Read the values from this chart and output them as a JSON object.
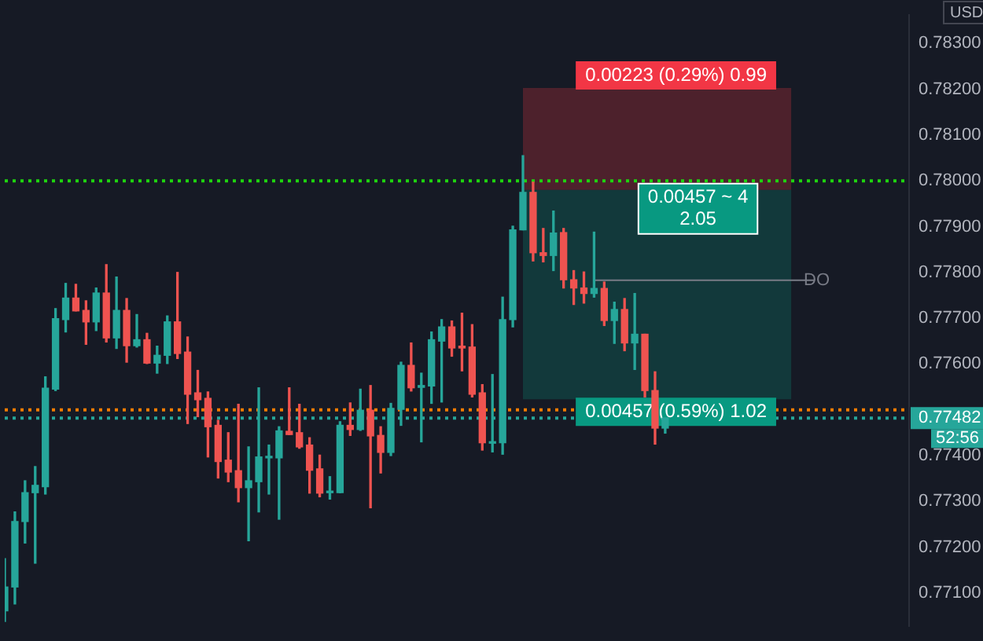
{
  "chart_data": {
    "type": "candlestick",
    "ylabel": "USD",
    "categories": [
      null,
      null,
      null,
      null,
      null,
      null,
      null,
      null,
      null,
      null,
      null,
      null,
      null,
      null,
      null,
      null,
      null,
      null,
      null,
      null,
      null,
      null,
      null,
      null,
      null,
      null,
      null,
      null,
      null,
      null,
      null,
      null,
      null,
      null,
      null,
      null,
      null,
      null,
      null,
      null,
      null,
      null,
      null,
      null,
      null,
      null,
      null,
      null,
      null,
      null,
      null,
      null,
      null,
      null,
      null,
      null,
      null,
      null,
      null,
      null,
      null,
      null,
      null,
      null,
      null,
      null,
      null,
      null,
      null,
      null,
      null,
      null,
      null,
      null,
      null,
      null,
      null,
      null,
      null,
      null,
      null,
      null,
      null,
      null,
      null,
      null,
      null,
      null,
      null,
      null
    ],
    "ohlc": [
      [
        0.77061,
        0.77175,
        0.77038,
        0.77113
      ],
      [
        0.77113,
        0.77277,
        0.77076,
        0.77256
      ],
      [
        0.77256,
        0.77345,
        0.77209,
        0.77319
      ],
      [
        0.77319,
        0.77376,
        0.77165,
        0.77335
      ],
      [
        0.77332,
        0.77572,
        0.77316,
        0.77547
      ],
      [
        0.77545,
        0.77721,
        0.77542,
        0.77699
      ],
      [
        0.77697,
        0.77776,
        0.7767,
        0.77744
      ],
      [
        0.77744,
        0.77774,
        0.77716,
        0.77716
      ],
      [
        0.77717,
        0.77738,
        0.77643,
        0.77692
      ],
      [
        0.77692,
        0.77766,
        0.77673,
        0.77755
      ],
      [
        0.77755,
        0.77817,
        0.77648,
        0.77657
      ],
      [
        0.77657,
        0.7779,
        0.77634,
        0.77717
      ],
      [
        0.77717,
        0.77743,
        0.77604,
        0.7764
      ],
      [
        0.7764,
        0.77708,
        0.77637,
        0.77653
      ],
      [
        0.77653,
        0.77667,
        0.77601,
        0.77602
      ],
      [
        0.77602,
        0.77639,
        0.7758,
        0.77619
      ],
      [
        0.77619,
        0.77705,
        0.77601,
        0.77692
      ],
      [
        0.77692,
        0.778,
        0.77612,
        0.77623
      ],
      [
        0.77626,
        0.77659,
        0.7747,
        0.77534
      ],
      [
        0.77537,
        0.77586,
        0.77485,
        0.77522
      ],
      [
        0.77525,
        0.77539,
        0.77397,
        0.77463
      ],
      [
        0.77466,
        0.77477,
        0.77351,
        0.77387
      ],
      [
        0.7739,
        0.7745,
        0.77343,
        0.77364
      ],
      [
        0.77367,
        0.77512,
        0.77299,
        0.7733
      ],
      [
        0.7733,
        0.77419,
        0.77214,
        0.77345
      ],
      [
        0.77343,
        0.77548,
        0.77277,
        0.77397
      ],
      [
        0.77395,
        0.77423,
        0.77316,
        0.77397
      ],
      [
        0.77395,
        0.77463,
        0.77261,
        0.77454
      ],
      [
        0.77453,
        0.77548,
        0.77446,
        0.77446
      ],
      [
        0.7745,
        0.77512,
        0.77416,
        0.77419
      ],
      [
        0.77423,
        0.77439,
        0.77318,
        0.77368
      ],
      [
        0.77371,
        0.77401,
        0.7731,
        0.77318
      ],
      [
        0.77319,
        0.77354,
        0.77305,
        0.77322
      ],
      [
        0.77319,
        0.77474,
        0.77319,
        0.77466
      ],
      [
        0.77466,
        0.77515,
        0.77444,
        0.77457
      ],
      [
        0.77457,
        0.77545,
        0.77455,
        0.77499
      ],
      [
        0.77499,
        0.77553,
        0.77286,
        0.77443
      ],
      [
        0.77444,
        0.77463,
        0.77362,
        0.77407
      ],
      [
        0.77407,
        0.77514,
        0.774,
        0.77503
      ],
      [
        0.77501,
        0.77604,
        0.77466,
        0.77597
      ],
      [
        0.77597,
        0.77646,
        0.77541,
        0.77548
      ],
      [
        0.77549,
        0.7758,
        0.7743,
        0.77553
      ],
      [
        0.77552,
        0.7767,
        0.77514,
        0.77653
      ],
      [
        0.7765,
        0.77697,
        0.77517,
        0.77681
      ],
      [
        0.77681,
        0.77694,
        0.77617,
        0.77635
      ],
      [
        0.77639,
        0.77711,
        0.77585,
        0.77635
      ],
      [
        0.77637,
        0.77686,
        0.77528,
        0.77534
      ],
      [
        0.77537,
        0.77555,
        0.77412,
        0.77428
      ],
      [
        0.77427,
        0.77577,
        0.77408,
        0.7743
      ],
      [
        0.77428,
        0.77746,
        0.77403,
        0.77697
      ],
      [
        0.77697,
        0.77901,
        0.77681,
        0.77893
      ],
      [
        0.77893,
        0.78055,
        0.77893,
        0.77975
      ],
      [
        0.77975,
        0.77997,
        0.77825,
        0.77843
      ],
      [
        0.77843,
        0.77896,
        0.77823,
        0.77837
      ],
      [
        0.77837,
        0.77934,
        0.77804,
        0.77886
      ],
      [
        0.77887,
        0.77896,
        0.77766,
        0.77784
      ],
      [
        0.77784,
        0.77804,
        0.7773,
        0.77766
      ],
      [
        0.77766,
        0.77801,
        0.77733,
        0.77754
      ],
      [
        0.77754,
        0.77888,
        0.77746,
        0.77765
      ],
      [
        0.77765,
        0.77779,
        0.77684,
        0.77695
      ],
      [
        0.77695,
        0.77735,
        0.77645,
        0.77719
      ],
      [
        0.77719,
        0.77743,
        0.77629,
        0.77646
      ],
      [
        0.77646,
        0.77754,
        0.77588,
        0.77665
      ],
      [
        0.77665,
        0.77665,
        0.77528,
        0.77542
      ],
      [
        0.77542,
        0.77583,
        0.77425,
        0.7746
      ],
      [
        0.7746,
        0.77482,
        0.77449,
        0.77482
      ],
      null,
      null,
      null,
      null,
      null,
      null,
      null,
      null,
      null,
      null,
      null,
      null,
      null,
      null,
      null,
      null,
      null,
      null,
      null,
      null,
      null,
      null,
      null,
      null
    ],
    "colors": [
      "#26a69a",
      "#26a69a",
      "#26a69a",
      "#26a69a",
      "#26a69a",
      "#26a69a",
      "#26a69a",
      "#ef5350",
      "#ef5350",
      "#26a69a",
      "#ef5350",
      "#26a69a",
      "#ef5350",
      "#26a69a",
      "#ef5350",
      "#26a69a",
      "#26a69a",
      "#ef5350",
      "#ef5350",
      "#ef5350",
      "#ef5350",
      "#ef5350",
      "#ef5350",
      "#ef5350",
      "#26a69a",
      "#26a69a",
      "#26a69a",
      "#26a69a",
      "#ef5350",
      "#ef5350",
      "#ef5350",
      "#ef5350",
      "#26a69a",
      "#26a69a",
      "#ef5350",
      "#26a69a",
      "#ef5350",
      "#ef5350",
      "#26a69a",
      "#26a69a",
      "#ef5350",
      "#26a69a",
      "#26a69a",
      "#26a69a",
      "#ef5350",
      "#ef5350",
      "#ef5350",
      "#ef5350",
      "#26a69a",
      "#26a69a",
      "#26a69a",
      "#26a69a",
      "#ef5350",
      "#ef5350",
      "#26a69a",
      "#ef5350",
      "#ef5350",
      "#ef5350",
      "#26a69a",
      "#ef5350",
      "#26a69a",
      "#ef5350",
      "#26a69a",
      "#ef5350",
      "#ef5350",
      "#26a69a",
      null,
      null,
      null,
      null,
      null,
      null,
      null,
      null,
      null,
      null,
      null,
      null,
      null,
      null,
      null,
      null,
      null,
      null,
      null,
      null,
      null,
      null,
      null,
      null
    ],
    "ylim": [
      0.77028,
      0.78362
    ],
    "yticks": [
      {
        "value": 0.771,
        "label": "0.77100"
      },
      {
        "value": 0.772,
        "label": "0.77200"
      },
      {
        "value": 0.773,
        "label": "0.77300"
      },
      {
        "value": 0.774,
        "label": "0.77400"
      },
      {
        "value": 0.776,
        "label": "0.77600"
      },
      {
        "value": 0.777,
        "label": "0.77700"
      },
      {
        "value": 0.778,
        "label": "0.77800"
      },
      {
        "value": 0.779,
        "label": "0.77900"
      },
      {
        "value": 0.78,
        "label": "0.78000"
      },
      {
        "value": 0.781,
        "label": "0.78100"
      },
      {
        "value": 0.782,
        "label": "0.78200"
      },
      {
        "value": 0.783,
        "label": "0.78300"
      }
    ],
    "grid": false,
    "legend": false,
    "bands": [
      {
        "axis": "y",
        "from": 0.7798,
        "to": 0.78203,
        "label": "0.00223 (0.29%) 0.99",
        "color": "#f23645"
      },
      {
        "axis": "y",
        "from": 0.77523,
        "to": 0.7798,
        "label": "0.00457 (0.59%) 1.02",
        "color": "#089981"
      }
    ],
    "ref_lines": [
      {
        "axis": "y",
        "value": 0.78,
        "color": "#1ed40f",
        "line_style": "dotted"
      },
      {
        "axis": "y",
        "value": 0.775,
        "color": "#f57c00",
        "line_style": "dotted"
      },
      {
        "axis": "y",
        "value": 0.77482,
        "color": "#26a69a",
        "line_style": "dotted",
        "label": "0.77482"
      },
      {
        "axis": "y",
        "value": 0.77783,
        "color": "#787b86",
        "line_style": "solid",
        "label": "DO"
      }
    ],
    "annotations": [
      {
        "text": "0.00457 ~ 4\n2.05",
        "y": 0.7798
      },
      "52:56"
    ]
  }
}
